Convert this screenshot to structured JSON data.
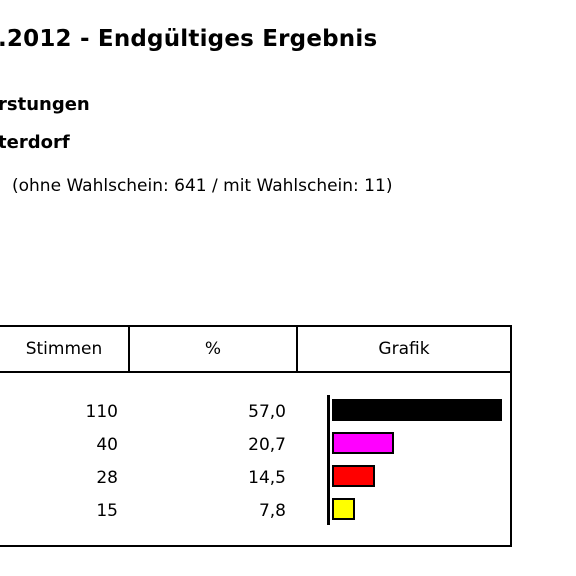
{
  "header": {
    "title": ".2012 - Endgültiges Ergebnis",
    "subtitle1": "rstungen",
    "subtitle2": "terdorf",
    "note": "(ohne Wahlschein: 641 / mit Wahlschein: 11)"
  },
  "table": {
    "columns": [
      "Stimmen",
      "%",
      "Grafik"
    ],
    "rows": [
      {
        "votes": "110",
        "percent": "57,0",
        "color": "#000000"
      },
      {
        "votes": "40",
        "percent": "20,7",
        "color": "#ff00ff"
      },
      {
        "votes": "28",
        "percent": "14,5",
        "color": "#ff0000"
      },
      {
        "votes": "15",
        "percent": "7,8",
        "color": "#ffff00"
      }
    ]
  },
  "chart_data": {
    "type": "bar",
    "values": [
      57.0,
      20.7,
      14.5,
      7.8
    ],
    "colors": [
      "#000000",
      "#ff00ff",
      "#ff0000",
      "#ffff00"
    ]
  }
}
